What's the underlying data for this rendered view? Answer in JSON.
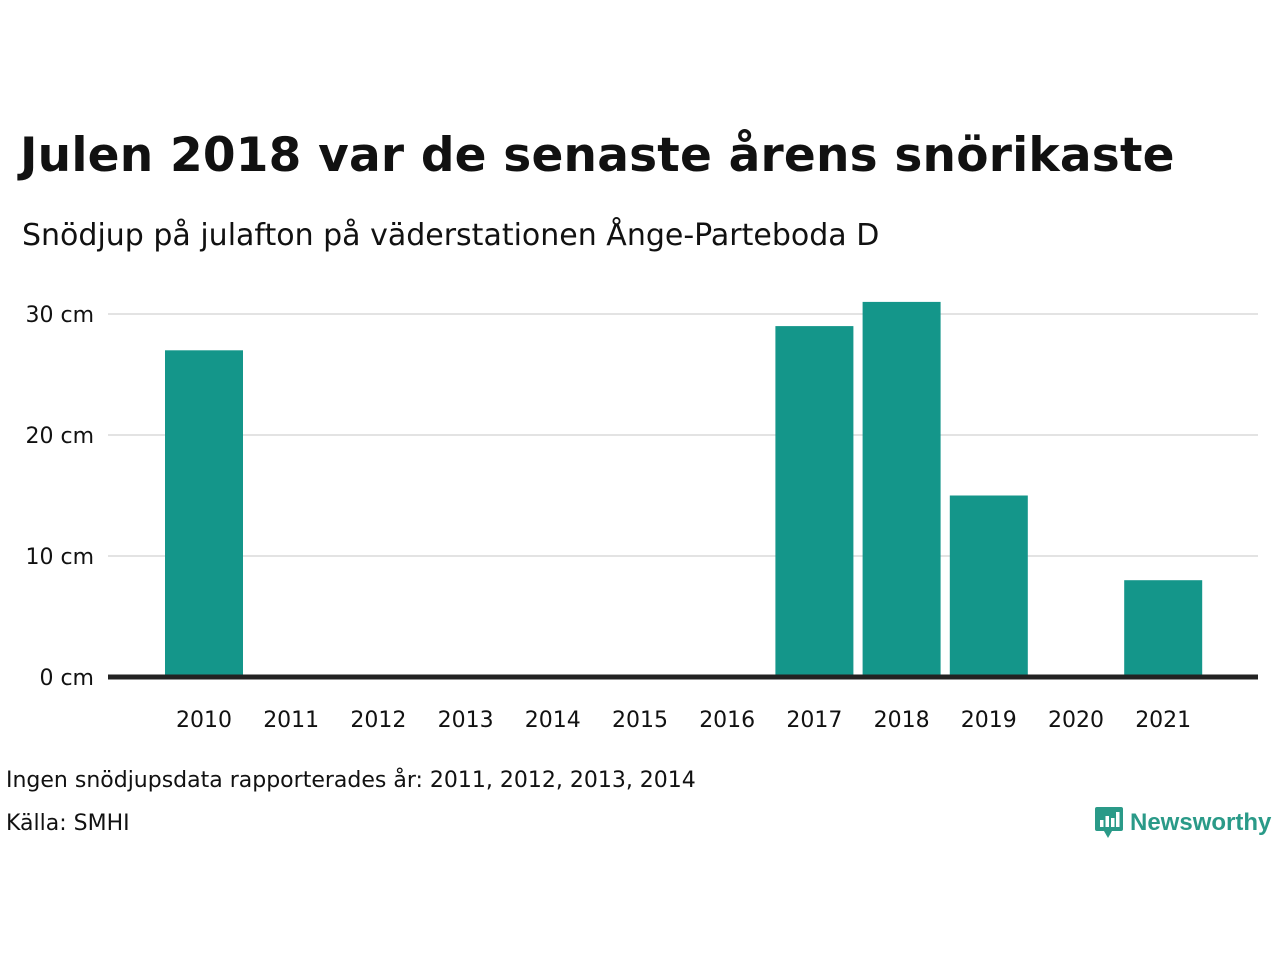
{
  "title": "Julen 2018 var de senaste årens snörikaste",
  "subtitle": "Snödjup på julafton på väderstationen Ånge-Parteboda D",
  "footnote": "Ingen snödjupsdata rapporterades år: 2011, 2012, 2013, 2014",
  "source": "Källa: SMHI",
  "logo": {
    "text": "Newsworthy",
    "icon": "newsworthy-logo-icon",
    "color": "#2a9a88"
  },
  "colors": {
    "bar": "#14968a",
    "grid": "#e3e3e3",
    "axis": "#222222"
  },
  "chart_data": {
    "type": "bar",
    "categories": [
      "2010",
      "2011",
      "2012",
      "2013",
      "2014",
      "2015",
      "2016",
      "2017",
      "2018",
      "2019",
      "2020",
      "2021"
    ],
    "values": [
      27,
      null,
      null,
      null,
      null,
      0,
      0,
      29,
      31,
      15,
      0,
      8
    ],
    "y_ticks": [
      {
        "value": 0,
        "label": "0 cm"
      },
      {
        "value": 10,
        "label": "10 cm"
      },
      {
        "value": 20,
        "label": "20 cm"
      },
      {
        "value": 30,
        "label": "30 cm"
      }
    ],
    "ylim": [
      0,
      31
    ],
    "unit": "cm",
    "grid": true
  }
}
